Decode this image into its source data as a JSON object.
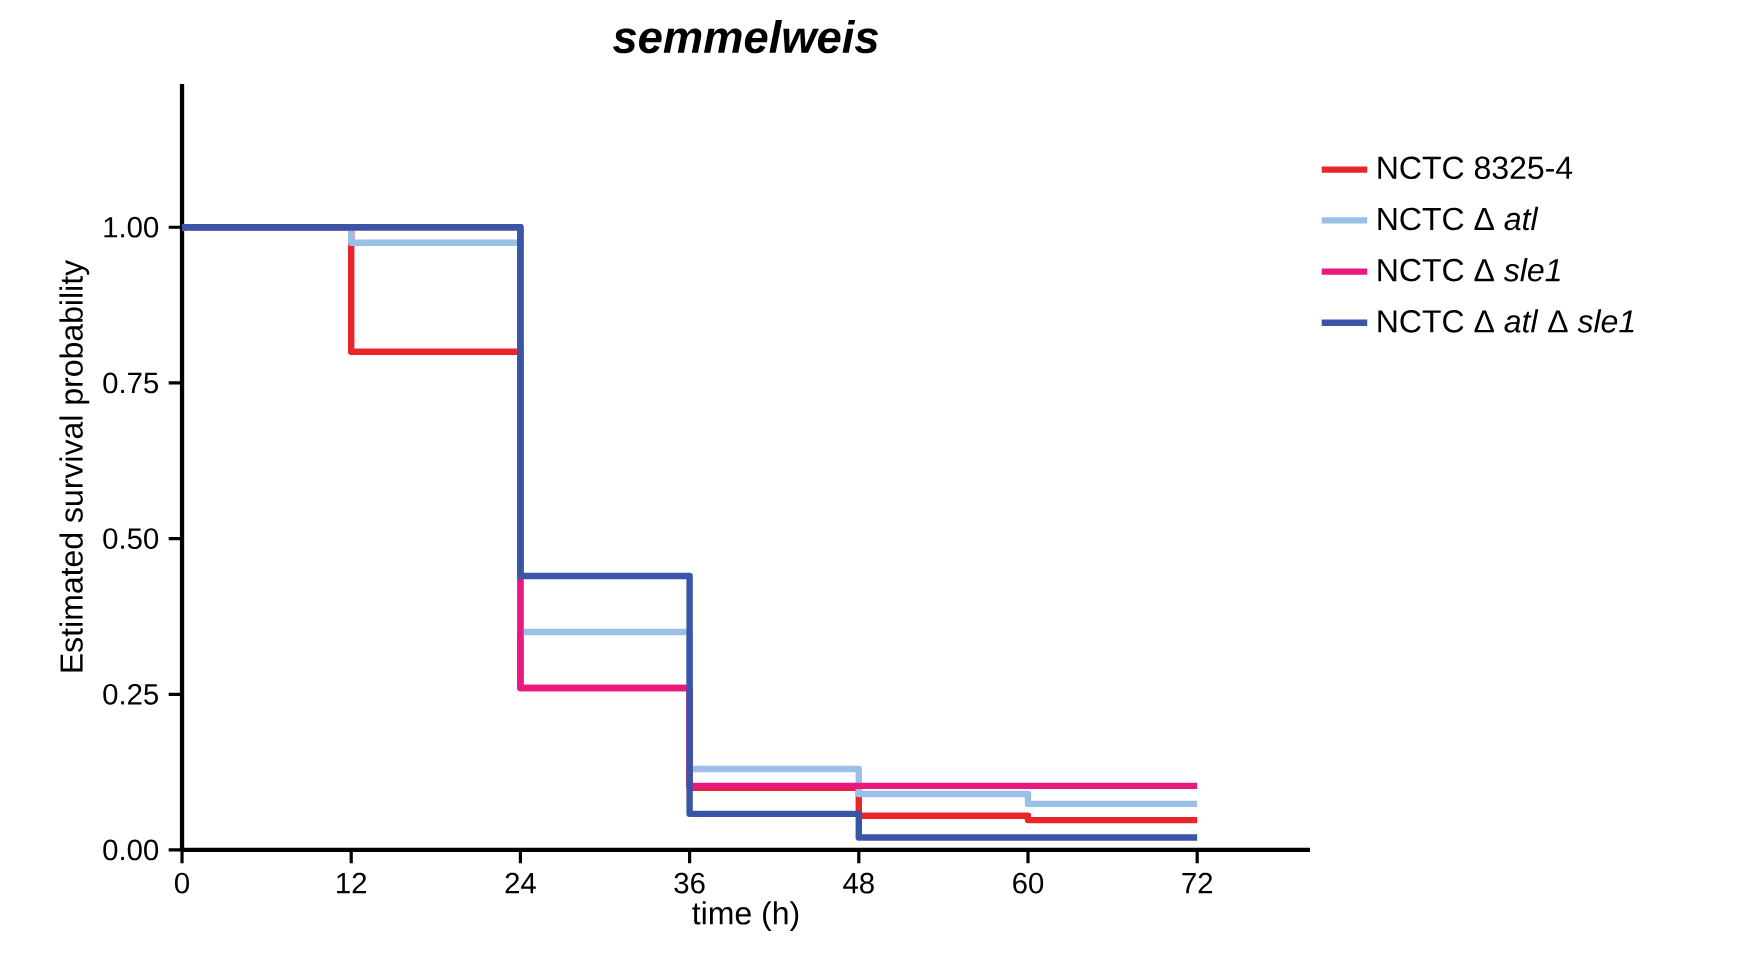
{
  "chart_data": {
    "type": "step",
    "title": "semmelweis",
    "xlabel": "time (h)",
    "ylabel": "Estimated survival probability",
    "x": [
      0,
      12,
      24,
      36,
      48,
      60,
      72
    ],
    "series": [
      {
        "name": "NCTC 8325-4",
        "color": "#e8262a",
        "values": [
          1,
          0.8,
          0.26,
          0.1,
          0.055,
          0.048,
          0.048
        ]
      },
      {
        "name": "NCTC Δ *atl*",
        "color": "#9ac0e8",
        "values": [
          1,
          0.975,
          0.35,
          0.13,
          0.09,
          0.074,
          0.074
        ]
      },
      {
        "name": "NCTC Δ *sle1*",
        "color": "#e8197f",
        "values": [
          1,
          1,
          0.26,
          0.103,
          0.103,
          0.103,
          0.103
        ]
      },
      {
        "name": "NCTC Δ *atl* Δ *sle1*",
        "color": "#3a55a5",
        "values": [
          1,
          1,
          0.44,
          0.058,
          0.02,
          0.02,
          0.02
        ]
      }
    ],
    "xlim": [
      0,
      80
    ],
    "ylim": [
      0,
      1.23
    ],
    "xticks": [
      0,
      12,
      24,
      36,
      48,
      60,
      72
    ],
    "yticks": [
      {
        "value": 0,
        "label": "0.00"
      },
      {
        "value": 0.25,
        "label": "0.25"
      },
      {
        "value": 0.5,
        "label": "0.50"
      },
      {
        "value": 0.75,
        "label": "0.75"
      },
      {
        "value": 1,
        "label": "1.00"
      }
    ],
    "grid": false,
    "legend": "top right"
  }
}
